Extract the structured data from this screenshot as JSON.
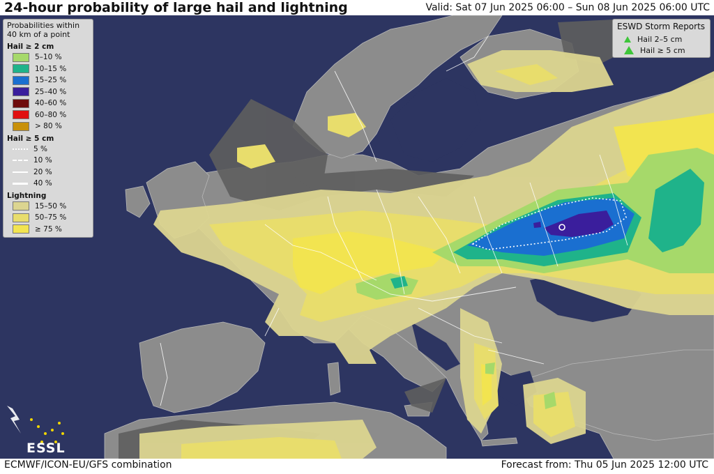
{
  "header": {
    "title": "24-hour probability of large hail and lightning",
    "valid": "Valid: Sat 07 Jun 2025 06:00 – Sun 08 Jun 2025 06:00 UTC"
  },
  "footer": {
    "model": "ECMWF/ICON-EU/GFS combination",
    "forecast": "Forecast from: Thu 05 Jun 2025 12:00 UTC"
  },
  "legend": {
    "intro": "Probabilities within 40 km of a point",
    "hail2": {
      "title": "Hail ≥ 2 cm",
      "items": [
        {
          "label": "5–10 %",
          "color": "#a6d96a"
        },
        {
          "label": "10–15 %",
          "color": "#1fb38a"
        },
        {
          "label": "15–25 %",
          "color": "#1a6fd0"
        },
        {
          "label": "25–40 %",
          "color": "#3a1e9c"
        },
        {
          "label": "40–60 %",
          "color": "#6e0c0c"
        },
        {
          "label": "60–80 %",
          "color": "#e01010"
        },
        {
          "label": "> 80 %",
          "color": "#c8900a"
        }
      ]
    },
    "hail5": {
      "title": "Hail ≥ 5 cm",
      "items": [
        {
          "label": "5 %"
        },
        {
          "label": "10 %"
        },
        {
          "label": "20 %"
        },
        {
          "label": "40 %"
        }
      ]
    },
    "lightning": {
      "title": "Lightning",
      "items": [
        {
          "label": "15–50 %",
          "color": "#dcd590"
        },
        {
          "label": "50–75 %",
          "color": "#e8dd6c"
        },
        {
          "label": "≥ 75 %",
          "color": "#f2e450"
        }
      ]
    }
  },
  "reports": {
    "title": "ESWD Storm Reports",
    "items": [
      {
        "label": "Hail 2–5 cm"
      },
      {
        "label": "Hail ≥ 5 cm"
      }
    ]
  },
  "logo": "ESSL",
  "colors": {
    "sea": "#2d3561",
    "land": "#8c8c8c",
    "dark_land": "#5e5e5e",
    "border_lines": "#ffffff"
  }
}
